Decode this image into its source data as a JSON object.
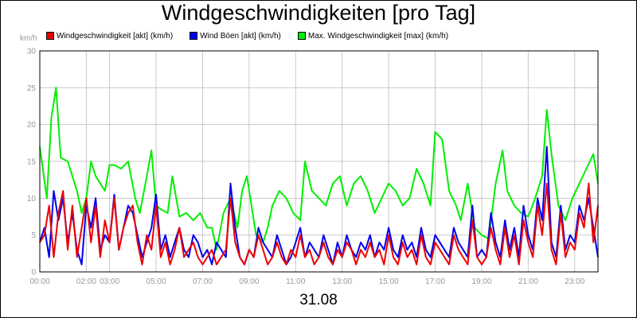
{
  "chart_data": {
    "type": "line",
    "title": "Windgeschwindigkeiten [pro Tag]",
    "xlabel": "31.08",
    "ylabel": "km/h",
    "ylim": [
      0,
      30
    ],
    "xlim": [
      "00:00",
      "24:00"
    ],
    "yticks": [
      0,
      5,
      10,
      15,
      20,
      25,
      30
    ],
    "xticks": [
      {
        "label": "00:00",
        "t": 0
      },
      {
        "label": "02:00",
        "t": 2
      },
      {
        "label": "03:00",
        "t": 3
      },
      {
        "label": "05:00",
        "t": 5
      },
      {
        "label": "07:00",
        "t": 7
      },
      {
        "label": "09:00",
        "t": 9
      },
      {
        "label": "11:00",
        "t": 11
      },
      {
        "label": "13:00",
        "t": 13
      },
      {
        "label": "15:00",
        "t": 15
      },
      {
        "label": "17:00",
        "t": 17
      },
      {
        "label": "19:00",
        "t": 19
      },
      {
        "label": "21:00",
        "t": 21
      },
      {
        "label": "23:00",
        "t": 23
      }
    ],
    "grid": true,
    "legend": "top-left",
    "series": [
      {
        "name": "Max. Windgeschwindigkeit [max] (km/h)",
        "color": "#00ee00",
        "x": [
          0,
          0.3,
          0.5,
          0.7,
          0.9,
          1.2,
          1.4,
          1.6,
          1.8,
          2.0,
          2.2,
          2.4,
          2.6,
          2.8,
          3.0,
          3.2,
          3.5,
          3.8,
          4.1,
          4.3,
          4.6,
          4.8,
          5.0,
          5.2,
          5.5,
          5.7,
          6.0,
          6.3,
          6.6,
          6.9,
          7.2,
          7.4,
          7.6,
          7.9,
          8.2,
          8.5,
          8.7,
          8.9,
          9.1,
          9.3,
          9.6,
          9.8,
          10.0,
          10.3,
          10.6,
          10.9,
          11.2,
          11.4,
          11.7,
          12.0,
          12.3,
          12.6,
          12.9,
          13.2,
          13.5,
          13.8,
          14.1,
          14.4,
          14.7,
          15.0,
          15.3,
          15.6,
          15.9,
          16.2,
          16.5,
          16.8,
          17.0,
          17.3,
          17.6,
          17.9,
          18.1,
          18.4,
          18.7,
          19.0,
          19.3,
          19.6,
          19.9,
          20.1,
          20.4,
          20.7,
          21.0,
          21.3,
          21.6,
          21.8,
          22.0,
          22.3,
          22.6,
          22.9,
          23.2,
          23.5,
          23.8,
          24.0
        ],
        "y": [
          17,
          10,
          21,
          25,
          15.5,
          15,
          13,
          11,
          8,
          10,
          15,
          13,
          12,
          11,
          14.5,
          14.5,
          14,
          15,
          10,
          8,
          13,
          16.5,
          9,
          8.5,
          8,
          13,
          7.5,
          8,
          7,
          8,
          6,
          6,
          3,
          8,
          10,
          6,
          11,
          13,
          9,
          5,
          4,
          6,
          9,
          11,
          10,
          8,
          7,
          15,
          11,
          10,
          9,
          12,
          13,
          9,
          12,
          13,
          11,
          8,
          10,
          12,
          11,
          9,
          10,
          14,
          12,
          9,
          19,
          18,
          11,
          9,
          7,
          12,
          6,
          5,
          4.5,
          12,
          16.5,
          11,
          9,
          8,
          7.5,
          10,
          13,
          22,
          16,
          9,
          7,
          10,
          12,
          14,
          16,
          12
        ]
      },
      {
        "name": "Wind Böen [akt] (km/h)",
        "color": "#0000ee",
        "x": [
          0,
          0.2,
          0.4,
          0.6,
          0.8,
          1.0,
          1.2,
          1.4,
          1.6,
          1.8,
          2.0,
          2.2,
          2.4,
          2.6,
          2.8,
          3.0,
          3.2,
          3.4,
          3.6,
          3.8,
          4.0,
          4.2,
          4.4,
          4.6,
          4.8,
          5.0,
          5.2,
          5.4,
          5.6,
          5.8,
          6.0,
          6.2,
          6.4,
          6.6,
          6.8,
          7.0,
          7.2,
          7.4,
          7.6,
          7.8,
          8.0,
          8.2,
          8.4,
          8.6,
          8.8,
          9.0,
          9.2,
          9.4,
          9.6,
          9.8,
          10.0,
          10.2,
          10.4,
          10.6,
          10.8,
          11.0,
          11.2,
          11.4,
          11.6,
          11.8,
          12.0,
          12.2,
          12.4,
          12.6,
          12.8,
          13.0,
          13.2,
          13.4,
          13.6,
          13.8,
          14.0,
          14.2,
          14.4,
          14.6,
          14.8,
          15.0,
          15.2,
          15.4,
          15.6,
          15.8,
          16.0,
          16.2,
          16.4,
          16.6,
          16.8,
          17.0,
          17.2,
          17.4,
          17.6,
          17.8,
          18.0,
          18.2,
          18.4,
          18.6,
          18.8,
          19.0,
          19.2,
          19.4,
          19.6,
          19.8,
          20.0,
          20.2,
          20.4,
          20.6,
          20.8,
          21.0,
          21.2,
          21.4,
          21.6,
          21.8,
          22.0,
          22.2,
          22.4,
          22.6,
          22.8,
          23.0,
          23.2,
          23.4,
          23.6,
          23.8,
          24.0
        ],
        "y": [
          4,
          6,
          2,
          11,
          7,
          10,
          4,
          8,
          3,
          1,
          9,
          6,
          10,
          3,
          5,
          4,
          10.5,
          3,
          6,
          9,
          8,
          5,
          2,
          4,
          6,
          10.5,
          3,
          5,
          2,
          4,
          6,
          3,
          2,
          5,
          4,
          2,
          3,
          1,
          4,
          3,
          2,
          12,
          6,
          2,
          1,
          3,
          2,
          6,
          4,
          3,
          2,
          5,
          3,
          1,
          2,
          4,
          6,
          2,
          4,
          3,
          2,
          5,
          3,
          1,
          4,
          2,
          5,
          3,
          2,
          4,
          3,
          5,
          2,
          4,
          3,
          6,
          3,
          2,
          5,
          3,
          4,
          2,
          6,
          3,
          2,
          5,
          4,
          3,
          2,
          6,
          4,
          3,
          2,
          9,
          2,
          3,
          2,
          8,
          4,
          2,
          7,
          3,
          6,
          2,
          9,
          5,
          3,
          10,
          7,
          17,
          4,
          2,
          9,
          3,
          5,
          4,
          9,
          7,
          10,
          6,
          2
        ]
      },
      {
        "name": "Windgeschwindigkeit [akt] (km/h)",
        "color": "#ee0000",
        "x": [
          0,
          0.2,
          0.4,
          0.6,
          0.8,
          1.0,
          1.2,
          1.4,
          1.6,
          1.8,
          2.0,
          2.2,
          2.4,
          2.6,
          2.8,
          3.0,
          3.2,
          3.4,
          3.6,
          3.8,
          4.0,
          4.2,
          4.4,
          4.6,
          4.8,
          5.0,
          5.2,
          5.4,
          5.6,
          5.8,
          6.0,
          6.2,
          6.4,
          6.6,
          6.8,
          7.0,
          7.2,
          7.4,
          7.6,
          7.8,
          8.0,
          8.2,
          8.4,
          8.6,
          8.8,
          9.0,
          9.2,
          9.4,
          9.6,
          9.8,
          10.0,
          10.2,
          10.4,
          10.6,
          10.8,
          11.0,
          11.2,
          11.4,
          11.6,
          11.8,
          12.0,
          12.2,
          12.4,
          12.6,
          12.8,
          13.0,
          13.2,
          13.4,
          13.6,
          13.8,
          14.0,
          14.2,
          14.4,
          14.6,
          14.8,
          15.0,
          15.2,
          15.4,
          15.6,
          15.8,
          16.0,
          16.2,
          16.4,
          16.6,
          16.8,
          17.0,
          17.2,
          17.4,
          17.6,
          17.8,
          18.0,
          18.2,
          18.4,
          18.6,
          18.8,
          19.0,
          19.2,
          19.4,
          19.6,
          19.8,
          20.0,
          20.2,
          20.4,
          20.6,
          20.8,
          21.0,
          21.2,
          21.4,
          21.6,
          21.8,
          22.0,
          22.2,
          22.4,
          22.6,
          22.8,
          23.0,
          23.2,
          23.4,
          23.6,
          23.8,
          24.0
        ],
        "y": [
          4,
          5,
          9,
          2,
          8,
          11,
          3,
          9,
          2,
          6,
          10,
          4,
          9,
          2,
          7,
          4,
          10,
          3,
          6,
          8,
          9,
          4,
          1,
          5,
          3,
          9,
          2,
          4,
          1,
          3,
          6,
          2,
          3,
          4,
          2,
          1,
          2,
          3,
          1,
          2,
          3,
          10,
          4,
          2,
          1,
          3,
          2,
          5,
          3,
          1,
          2,
          4,
          2,
          1,
          3,
          2,
          5,
          2,
          3,
          1,
          2,
          4,
          2,
          1,
          3,
          2,
          4,
          3,
          1,
          3,
          2,
          4,
          2,
          3,
          1,
          5,
          2,
          1,
          4,
          2,
          3,
          1,
          5,
          2,
          1,
          4,
          3,
          2,
          1,
          5,
          3,
          2,
          1,
          7,
          2,
          1,
          2,
          6,
          3,
          1,
          6,
          2,
          5,
          1,
          7,
          4,
          2,
          9,
          5,
          12,
          3,
          1,
          8,
          2,
          4,
          3,
          8,
          6,
          12,
          4,
          9
        ]
      }
    ]
  }
}
